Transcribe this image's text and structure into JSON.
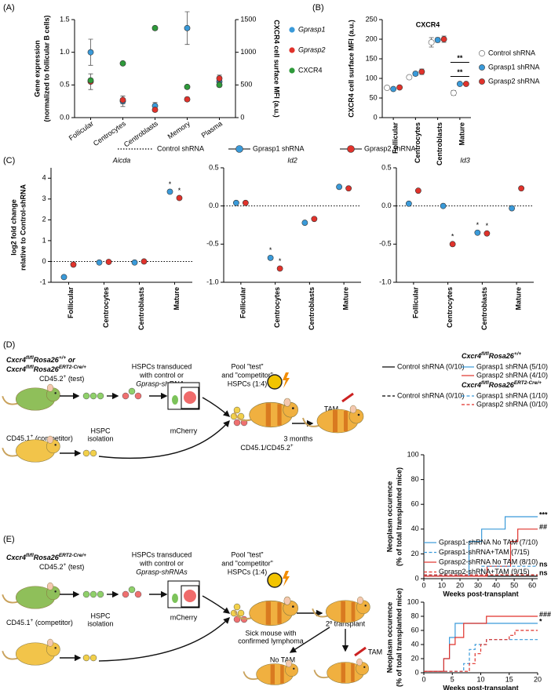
{
  "panel_labels": [
    "(A)",
    "(B)",
    "(C)",
    "(D)",
    "(E)"
  ],
  "chart_data": [
    {
      "type": "scatter",
      "categories": [
        "Follicular",
        "Centrocytes",
        "Centroblasts",
        "Memory",
        "Plasma"
      ],
      "ylabel": [
        "Gene expression",
        "(normalized to follicular B cells)"
      ],
      "y2label": "CXCR4 cell surface MFI (a.u.)",
      "ylim": [
        0,
        1.5
      ],
      "yticks": [
        {
          "value": 0,
          "label": "0.0"
        },
        0.5,
        {
          "value": 1,
          "label": "1.0"
        },
        1.5
      ],
      "y2lim": [
        0,
        1500
      ],
      "y2ticks": [
        0,
        500,
        1000,
        1500
      ],
      "series": [
        {
          "name": "Gprasp1",
          "color": "#3a9ad9",
          "values": [
            1.0,
            0.25,
            0.18,
            1.37,
            0.55
          ],
          "errors": [
            0.2,
            0.08,
            0.05,
            0.25,
            0.08
          ]
        },
        {
          "name": "Gprasp2",
          "color": "#e0322b",
          "values": [
            0.55,
            0.27,
            0.12,
            0.28,
            0.6
          ],
          "errors": [
            0.12,
            0.06,
            0.03,
            0.03,
            0.05
          ]
        },
        {
          "name": "CXCR4",
          "color": "#2e9a3a",
          "axis": "y2",
          "values": [
            570,
            830,
            1370,
            470,
            500
          ],
          "errors": [
            30,
            20,
            30,
            20,
            20
          ]
        }
      ]
    },
    {
      "type": "scatter",
      "title": "CXCR4",
      "ylabel": "CXCR4 cell surface MFI (a.u.)",
      "categories": [
        "Follicular",
        "Centrocytes",
        "Centroblasts",
        "Mature"
      ],
      "ylim": [
        0,
        250
      ],
      "yticks": [
        0,
        50,
        100,
        150,
        200,
        250
      ],
      "series": [
        {
          "name": "Control shRNA",
          "color": "#ffffff",
          "values": [
            76,
            103,
            192,
            63
          ],
          "errors": [
            5,
            4,
            12,
            6
          ]
        },
        {
          "name": "Gprasp1 shRNA",
          "color": "#3a9ad9",
          "values": [
            73,
            112,
            198,
            86
          ],
          "errors": [
            3,
            5,
            6,
            3
          ]
        },
        {
          "name": "Gprasp2 shRNA",
          "color": "#e0322b",
          "values": [
            77,
            117,
            200,
            86
          ],
          "errors": [
            3,
            7,
            8,
            3
          ]
        }
      ],
      "annotations": [
        "**",
        "**"
      ]
    },
    {
      "type": "scatter",
      "ylabel": [
        "log2 fold change",
        "relative to Control-shRNA"
      ],
      "categories": [
        "Follicular",
        "Centrocytes",
        "Centroblasts",
        "Mature"
      ],
      "reference": {
        "name": "Control shRNA",
        "value": 0
      },
      "series": [
        {
          "name": "Gprasp1 shRNA",
          "color": "#3a9ad9"
        },
        {
          "name": "Gprasp2 shRNA",
          "color": "#e0322b"
        }
      ],
      "subplots": [
        {
          "title": "Aicda",
          "ylim": [
            -1,
            4.5
          ],
          "yticks": [
            -1,
            0,
            1,
            2,
            3,
            4
          ],
          "values": [
            [
              -0.75,
              -0.05,
              -0.05,
              3.35
            ],
            [
              -0.15,
              -0.02,
              0,
              3.05
            ]
          ],
          "stars": [
            [
              null,
              null,
              null,
              "*"
            ],
            [
              null,
              null,
              null,
              "*"
            ]
          ]
        },
        {
          "title": "Id2",
          "ylim": [
            -1,
            0.5
          ],
          "yticks": [
            {
              "value": -1,
              "label": "-1.0"
            },
            -0.5,
            {
              "value": 0,
              "label": "0.0"
            },
            0.5
          ],
          "values": [
            [
              0.04,
              -0.68,
              -0.22,
              0.25
            ],
            [
              0.04,
              -0.82,
              -0.17,
              0.23
            ]
          ],
          "stars": [
            [
              null,
              "*",
              null,
              null
            ],
            [
              null,
              "*",
              null,
              null
            ]
          ]
        },
        {
          "title": "Id3",
          "ylim": [
            -1,
            0.5
          ],
          "yticks": [
            {
              "value": -1,
              "label": "-1.0"
            },
            -0.5,
            {
              "value": 0,
              "label": "0.0"
            },
            0.5
          ],
          "values": [
            [
              0.03,
              0.0,
              -0.35,
              -0.03
            ],
            [
              0.2,
              -0.5,
              -0.36,
              0.23
            ]
          ],
          "stars": [
            [
              null,
              null,
              "*",
              null
            ],
            [
              null,
              "*",
              "*",
              null
            ]
          ]
        }
      ]
    },
    {
      "type": "line",
      "ylabel": [
        "Neoplasm occurence",
        "(% of total transplanted mice)"
      ],
      "xlabel": "Weeks post-transplant",
      "xlim": [
        0,
        63
      ],
      "xticks": [
        0,
        10,
        20,
        30,
        40,
        50,
        60
      ],
      "ylim": [
        0,
        100
      ],
      "yticks": [
        0,
        20,
        40,
        60,
        80,
        100
      ],
      "groups": [
        {
          "title": [
            "Cxcr4",
            "fl/fl",
            "Rosa26",
            "+/+"
          ],
          "series": [
            {
              "name": "Control shRNA (0/10)",
              "color": "#000000",
              "dashed": false,
              "x": [
                0,
                63
              ],
              "values": [
                2,
                2
              ]
            },
            {
              "name": "Gprasp1 shRNA (5/10)",
              "color": "#3a9ad9",
              "dashed": false,
              "x": [
                0,
                25,
                25,
                32,
                32,
                45,
                45,
                63
              ],
              "values": [
                2,
                2,
                30,
                30,
                40,
                40,
                50,
                50
              ],
              "end_label": "***"
            },
            {
              "name": "Gprasp2 shRNA (4/10)",
              "color": "#e0322b",
              "dashed": false,
              "x": [
                0,
                35,
                35,
                48,
                48,
                52,
                52,
                63
              ],
              "values": [
                2,
                2,
                10,
                10,
                30,
                30,
                40,
                40
              ],
              "end_label": "##"
            }
          ]
        },
        {
          "title": [
            "Cxcr4",
            "fl/fl",
            "Rosa26",
            "ERT2-Cre/+"
          ],
          "series": [
            {
              "name": "Control shRNA (0/10)",
              "color": "#000000",
              "dashed": true,
              "x": [
                0,
                63
              ],
              "values": [
                3,
                3
              ]
            },
            {
              "name": "Gprasp1 shRNA (1/10)",
              "color": "#3a9ad9",
              "dashed": true,
              "x": [
                0,
                32,
                32,
                63
              ],
              "values": [
                3,
                3,
                10,
                10
              ],
              "end_label": "ns"
            },
            {
              "name": "Gprasp2 shRNA (0/10)",
              "color": "#e0322b",
              "dashed": true,
              "x": [
                0,
                63
              ],
              "values": [
                3,
                3
              ],
              "end_label": "ns"
            }
          ]
        }
      ]
    },
    {
      "type": "line",
      "ylabel": [
        "Neoplasm occurence",
        "(% of total transplanted mice)"
      ],
      "xlabel": "Weeks post-transplant",
      "xlim": [
        0,
        20
      ],
      "xticks": [
        0,
        5,
        10,
        15,
        20
      ],
      "ylim": [
        0,
        100
      ],
      "yticks": [
        0,
        20,
        40,
        60,
        80,
        100
      ],
      "series": [
        {
          "name": "Gprasp1-shRNA No TAM (7/10)",
          "color": "#3a9ad9",
          "dashed": false,
          "x": [
            0,
            3.5,
            3.5,
            4.5,
            4.5,
            5.5,
            5.5,
            20
          ],
          "values": [
            2,
            2,
            20,
            20,
            50,
            50,
            70,
            70
          ],
          "end_label": "*"
        },
        {
          "name": "Gprasp1-shRNA+TAM (7/15)",
          "color": "#3a9ad9",
          "dashed": true,
          "x": [
            0,
            7,
            7,
            8,
            8,
            9,
            9,
            11,
            11,
            20
          ],
          "values": [
            2,
            2,
            13,
            13,
            33,
            33,
            40,
            40,
            47,
            47
          ]
        },
        {
          "name": "Gprasp2-shRNA No TAM (8/10)",
          "color": "#e0322b",
          "dashed": false,
          "x": [
            0,
            3.5,
            3.5,
            4.5,
            4.5,
            5.5,
            5.5,
            7,
            7,
            11,
            11,
            20
          ],
          "values": [
            2,
            2,
            20,
            20,
            40,
            40,
            50,
            50,
            70,
            70,
            80,
            80
          ],
          "end_label": "###"
        },
        {
          "name": "Gprasp2-shRNA+TAM (9/15)",
          "color": "#e0322b",
          "dashed": true,
          "x": [
            0,
            8,
            8,
            9,
            9,
            10,
            10,
            11,
            11,
            15,
            15,
            16,
            16,
            20
          ],
          "values": [
            2,
            2,
            13,
            13,
            27,
            27,
            40,
            40,
            47,
            47,
            53,
            53,
            60,
            60
          ]
        }
      ]
    }
  ],
  "schematics": [
    {
      "genotype": [
        [
          "Cxcr4",
          "fl/fl",
          "Rosa26",
          "+/+",
          " or"
        ],
        [
          "Cxcr4",
          "fl/fl",
          "Rosa26",
          "ERT2-Cre/+"
        ]
      ],
      "test": [
        "CD45.2",
        "+",
        " (test)"
      ],
      "competitor": [
        "CD45.1",
        "+",
        " (competitor)"
      ],
      "isolation": [
        "HSPC",
        "isolation"
      ],
      "transduced": [
        "HSPCs transduced",
        "with control or",
        "Gprasp-shRNAs"
      ],
      "reporter": "mCherry",
      "pool": [
        "Pool ”test”",
        "and ”competitor”",
        "HSPCs (1:4)"
      ],
      "wait": "3 months",
      "recipient": [
        "CD45.1/CD45.2",
        "+"
      ],
      "treatment": "TAM"
    },
    {
      "genotype": [
        [
          "Cxcr4",
          "fl/fl",
          "Rosa26",
          "ERT2-Cre/+"
        ]
      ],
      "test": [
        "CD45.2",
        "+",
        " (test)"
      ],
      "competitor": [
        "CD45.1",
        "+",
        " (competitor)"
      ],
      "isolation": [
        "HSPC",
        "isolation"
      ],
      "transduced": [
        "HSPCs transduced",
        "with control or",
        "Gprasp-shRNAs"
      ],
      "reporter": "mCherry",
      "pool": [
        "Pool ”test”",
        "and ”competitor”",
        "HSPCs (1:4)"
      ],
      "sick": [
        "Sick mouse with",
        "confirmed lymphoma"
      ],
      "secondary": "2º transplant",
      "control_arm": "No TAM",
      "treatment": "TAM"
    }
  ]
}
